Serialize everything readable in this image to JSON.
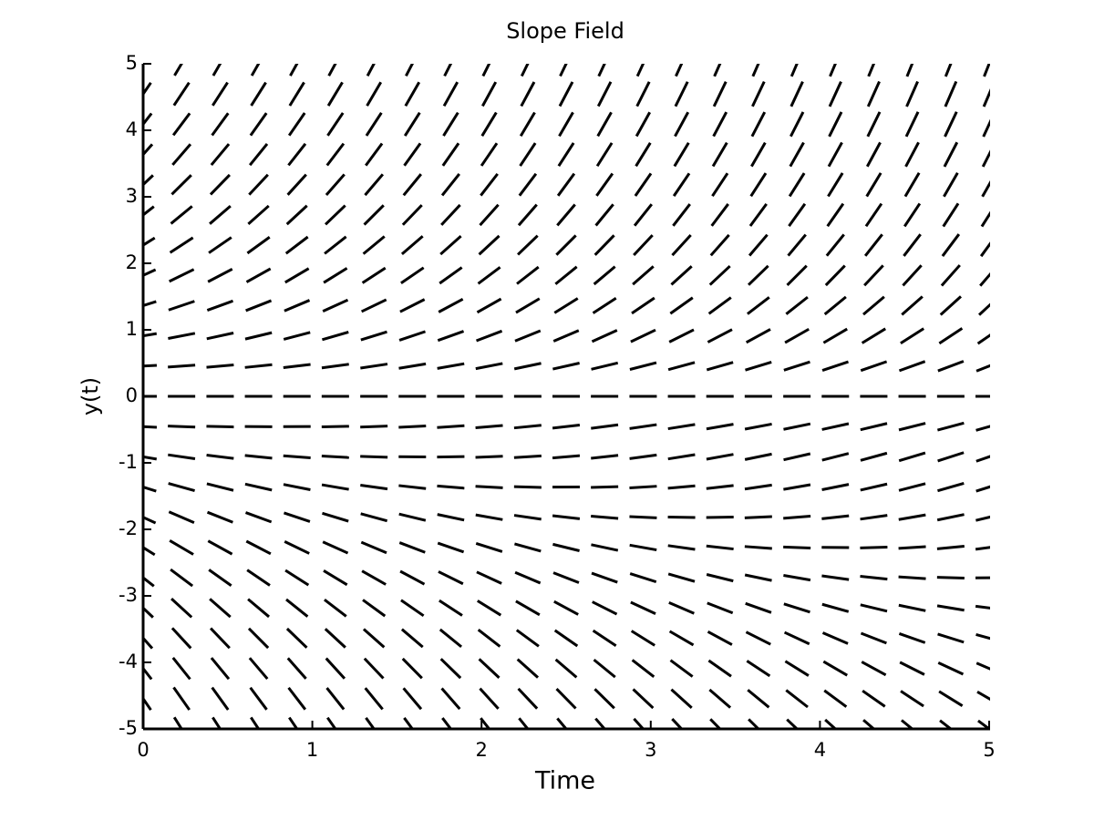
{
  "chart_data": {
    "type": "slope_field",
    "title": "Slope Field",
    "xlabel": "Time",
    "ylabel": "y(t)",
    "xlim": [
      0,
      5
    ],
    "ylim": [
      -5,
      5
    ],
    "xticks": [
      0,
      1,
      2,
      3,
      4,
      5
    ],
    "yticks": [
      -5,
      -4,
      -3,
      -2,
      -1,
      0,
      1,
      2,
      3,
      4,
      5
    ],
    "color": "#000000",
    "t": [
      0,
      0.227,
      0.455,
      0.682,
      0.909,
      1.136,
      1.364,
      1.591,
      1.818,
      2.045,
      2.273,
      2.5,
      2.727,
      2.955,
      3.182,
      3.409,
      3.636,
      3.864,
      4.091,
      4.318,
      4.545,
      4.773,
      5
    ],
    "y": [
      -5,
      -4.545,
      -4.091,
      -3.636,
      -3.182,
      -2.727,
      -2.273,
      -1.818,
      -1.364,
      -0.909,
      -0.455,
      0,
      0.455,
      0.909,
      1.364,
      1.818,
      2.273,
      2.727,
      3.182,
      3.636,
      4.091,
      4.545,
      5
    ],
    "slopes": [
      [
        -4.17,
        -4.06,
        -3.96,
        -3.85,
        -3.75,
        -3.65,
        -3.54,
        -3.44,
        -3.33,
        -3.23,
        -3.13,
        -3.02,
        -2.92,
        -2.81,
        -2.71,
        -2.6,
        -2.5,
        -2.4,
        -2.29,
        -2.19,
        -2.08,
        -1.98,
        -1.88
      ],
      [
        -3.73,
        -3.62,
        -3.52,
        -3.42,
        -3.32,
        -3.21,
        -3.11,
        -3.01,
        -2.91,
        -2.8,
        -2.7,
        -2.6,
        -2.5,
        -2.39,
        -2.29,
        -2.19,
        -2.09,
        -1.98,
        -1.88,
        -1.78,
        -1.68,
        -1.57,
        -1.47
      ],
      [
        -3.29,
        -3.19,
        -3.09,
        -2.99,
        -2.89,
        -2.79,
        -2.68,
        -2.58,
        -2.48,
        -2.38,
        -2.28,
        -2.18,
        -2.08,
        -1.98,
        -1.88,
        -1.78,
        -1.68,
        -1.58,
        -1.48,
        -1.38,
        -1.28,
        -1.18,
        -1.08
      ],
      [
        -2.85,
        -2.75,
        -2.66,
        -2.56,
        -2.46,
        -2.36,
        -2.26,
        -2.17,
        -2.07,
        -1.97,
        -1.87,
        -1.77,
        -1.68,
        -1.58,
        -1.48,
        -1.38,
        -1.28,
        -1.19,
        -1.09,
        -0.99,
        -0.89,
        -0.79,
        -0.7
      ],
      [
        -2.42,
        -2.33,
        -2.23,
        -2.14,
        -2.04,
        -1.95,
        -1.85,
        -1.76,
        -1.66,
        -1.57,
        -1.47,
        -1.37,
        -1.28,
        -1.18,
        -1.09,
        -0.99,
        -0.9,
        -0.8,
        -0.71,
        -0.61,
        -0.52,
        -0.42,
        -0.33
      ],
      [
        -2,
        -1.9,
        -1.81,
        -1.72,
        -1.63,
        -1.54,
        -1.45,
        -1.36,
        -1.26,
        -1.17,
        -1.08,
        -0.99,
        -0.9,
        -0.81,
        -0.72,
        -0.62,
        -0.53,
        -0.44,
        -0.35,
        -0.26,
        -0.17,
        -0.07,
        0.02
      ],
      [
        -1.58,
        -1.49,
        -1.4,
        -1.32,
        -1.23,
        -1.14,
        -1.06,
        -0.97,
        -0.88,
        -0.8,
        -0.71,
        -0.62,
        -0.54,
        -0.45,
        -0.36,
        -0.28,
        -0.19,
        -0.1,
        -0.02,
        0.07,
        0.16,
        0.24,
        0.33
      ],
      [
        -1.17,
        -1.09,
        -1.01,
        -0.93,
        -0.85,
        -0.77,
        -0.69,
        -0.61,
        -0.53,
        -0.45,
        -0.37,
        -0.29,
        -0.21,
        -0.12,
        -0.04,
        0.04,
        0.12,
        0.2,
        0.28,
        0.36,
        0.44,
        0.52,
        0.6
      ],
      [
        -0.79,
        -0.71,
        -0.64,
        -0.57,
        -0.5,
        -0.43,
        -0.35,
        -0.28,
        -0.21,
        -0.14,
        -0.07,
        0.01,
        0.08,
        0.15,
        0.22,
        0.29,
        0.37,
        0.44,
        0.51,
        0.58,
        0.66,
        0.73,
        0.8
      ],
      [
        -0.43,
        -0.37,
        -0.31,
        -0.25,
        -0.19,
        -0.14,
        -0.08,
        -0.02,
        0.04,
        0.1,
        0.16,
        0.22,
        0.28,
        0.34,
        0.4,
        0.46,
        0.52,
        0.58,
        0.64,
        0.7,
        0.76,
        0.82,
        0.88
      ],
      [
        -0.14,
        -0.1,
        -0.06,
        -0.02,
        0.01,
        0.05,
        0.09,
        0.13,
        0.17,
        0.21,
        0.25,
        0.29,
        0.33,
        0.37,
        0.4,
        0.44,
        0.48,
        0.52,
        0.56,
        0.6,
        0.64,
        0.68,
        0.72
      ],
      [
        0,
        0,
        0,
        0,
        0,
        0,
        0,
        0,
        0,
        0,
        0,
        0,
        0,
        0,
        0,
        0,
        0,
        0,
        0,
        0,
        0,
        0,
        0
      ],
      [
        0.14,
        0.18,
        0.22,
        0.26,
        0.3,
        0.34,
        0.38,
        0.42,
        0.45,
        0.49,
        0.53,
        0.57,
        0.61,
        0.65,
        0.69,
        0.73,
        0.77,
        0.81,
        0.85,
        0.88,
        0.92,
        0.96,
        1
      ],
      [
        0.43,
        0.49,
        0.55,
        0.61,
        0.67,
        0.73,
        0.79,
        0.85,
        0.91,
        0.97,
        1.03,
        1.09,
        1.15,
        1.21,
        1.27,
        1.33,
        1.39,
        1.44,
        1.5,
        1.56,
        1.62,
        1.68,
        1.74
      ],
      [
        0.79,
        0.86,
        0.93,
        1,
        1.08,
        1.15,
        1.22,
        1.29,
        1.36,
        1.44,
        1.51,
        1.58,
        1.65,
        1.72,
        1.8,
        1.87,
        1.94,
        2.01,
        2.09,
        2.16,
        2.23,
        2.3,
        2.37
      ],
      [
        1.17,
        1.25,
        1.33,
        1.42,
        1.5,
        1.58,
        1.66,
        1.74,
        1.82,
        1.9,
        1.98,
        2.06,
        2.14,
        2.22,
        2.3,
        2.38,
        2.46,
        2.54,
        2.62,
        2.71,
        2.79,
        2.87,
        2.95
      ],
      [
        1.58,
        1.67,
        1.75,
        1.84,
        1.93,
        2.01,
        2.1,
        2.19,
        2.27,
        2.36,
        2.45,
        2.53,
        2.62,
        2.71,
        2.79,
        2.88,
        2.97,
        3.05,
        3.14,
        3.23,
        3.31,
        3.4,
        3.49
      ],
      [
        2,
        2.09,
        2.18,
        2.27,
        2.36,
        2.45,
        2.54,
        2.64,
        2.73,
        2.82,
        2.91,
        3,
        3.09,
        3.18,
        3.28,
        3.37,
        3.46,
        3.55,
        3.64,
        3.73,
        3.82,
        3.92,
        4.01
      ],
      [
        2.42,
        2.52,
        2.61,
        2.71,
        2.8,
        2.9,
        2.99,
        3.09,
        3.18,
        3.28,
        3.37,
        3.47,
        3.56,
        3.66,
        3.75,
        3.85,
        3.94,
        4.04,
        4.13,
        4.23,
        4.32,
        4.42,
        4.51
      ],
      [
        2.85,
        2.95,
        3.05,
        3.15,
        3.24,
        3.34,
        3.44,
        3.54,
        3.64,
        3.73,
        3.83,
        3.93,
        4.03,
        4.13,
        4.22,
        4.32,
        4.42,
        4.52,
        4.62,
        4.71,
        4.81,
        4.91,
        5.01
      ],
      [
        3.29,
        3.39,
        3.49,
        3.59,
        3.69,
        3.79,
        3.89,
        3.99,
        4.09,
        4.19,
        4.29,
        4.39,
        4.49,
        4.59,
        4.69,
        4.79,
        4.89,
        5,
        5.1,
        5.2,
        5.3,
        5.4,
        5.5
      ],
      [
        3.73,
        3.83,
        3.93,
        4.03,
        4.14,
        4.24,
        4.34,
        4.44,
        4.55,
        4.65,
        4.75,
        4.85,
        4.96,
        5.06,
        5.16,
        5.26,
        5.37,
        5.47,
        5.57,
        5.67,
        5.78,
        5.88,
        5.98
      ],
      [
        4.17,
        4.27,
        4.38,
        4.48,
        4.58,
        4.69,
        4.79,
        4.9,
        5,
        5.1,
        5.21,
        5.31,
        5.42,
        5.52,
        5.63,
        5.73,
        5.83,
        5.94,
        6.04,
        6.15,
        6.25,
        6.35,
        6.46
      ]
    ]
  }
}
